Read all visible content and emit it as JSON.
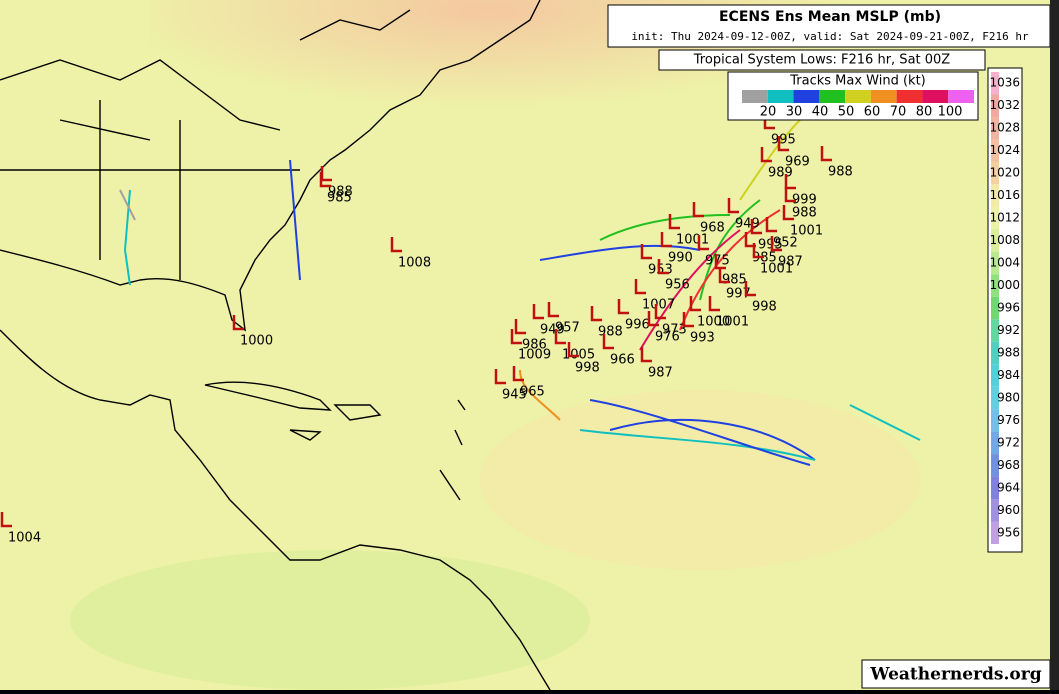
{
  "header": {
    "title": "ECENS Ens Mean MSLP (mb)",
    "subtitle": "init: Thu 2024-09-12-00Z, valid: Sat 2024-09-21-00Z, F216 hr"
  },
  "lows_title": "Tropical System Lows: F216 hr, Sat 00Z",
  "wind_legend": {
    "title": "Tracks Max Wind (kt)",
    "colors": [
      "#a0a0a0",
      "#10c0c0",
      "#2040e0",
      "#20c020",
      "#d0d020",
      "#f09020",
      "#f03030",
      "#e01060",
      "#f060f0"
    ],
    "ticks": [
      20,
      30,
      40,
      50,
      60,
      70,
      80,
      100
    ]
  },
  "pressure_scale": {
    "ticks": [
      1036,
      1032,
      1028,
      1024,
      1020,
      1016,
      1012,
      1008,
      1004,
      1000,
      996,
      992,
      988,
      984,
      980,
      976,
      972,
      968,
      964,
      960,
      956
    ],
    "colors": [
      "#f4b0cc",
      "#f0a8a0",
      "#f0b4a0",
      "#f4c0a0",
      "#f4d0a0",
      "#f4eaa8",
      "#eef2a8",
      "#d8ee98",
      "#b8e890",
      "#90e080",
      "#70d870",
      "#60d8a0",
      "#50d0c0",
      "#50d0d8",
      "#60d0e0",
      "#70c0e8",
      "#70a8e8",
      "#7090e0",
      "#8080e0",
      "#a090e0",
      "#c0a0e0"
    ]
  },
  "lows": [
    995,
    969,
    989,
    988,
    999,
    988,
    949,
    1001,
    968,
    1001,
    995,
    952,
    990,
    975,
    985,
    987,
    1001,
    953,
    956,
    985,
    997,
    998,
    1007,
    996,
    973,
    1000,
    1001,
    976,
    993,
    988,
    957,
    949,
    986,
    1009,
    1005,
    998,
    966,
    987,
    965,
    945,
    988,
    985,
    1008,
    1000,
    1004
  ],
  "watermark": "Weathernerds.org"
}
